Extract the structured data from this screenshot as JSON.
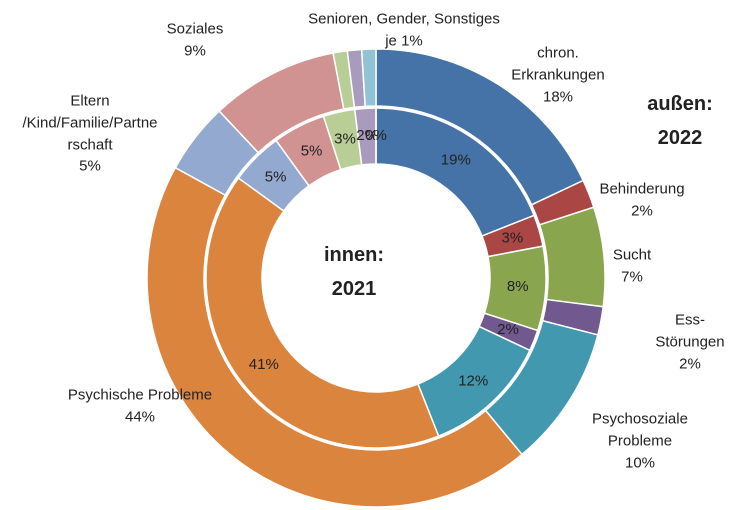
{
  "chart_data": {
    "type": "donut",
    "outer_annotation": [
      "außen:",
      "2022"
    ],
    "inner_annotation": [
      "innen:",
      "2021"
    ],
    "categories": [
      "chron.\nErkrankungen",
      "Behinderung",
      "Sucht",
      "Ess-Störungen",
      "Psychosoziale\nProbleme",
      "Psychische Probleme",
      "Eltern\n/Kind/Familie/Partne\nrschaft",
      "Soziales",
      null,
      null,
      null
    ],
    "group_label": "Senioren, Gender, Sonstiges",
    "group_value_label": "je 1%",
    "colors": [
      "#4572a7",
      "#aa4643",
      "#89a54e",
      "#71588f",
      "#4198af",
      "#db843d",
      "#93a9cf",
      "#d19392",
      "#b9cd96",
      "#a99bbd",
      "#92c3d5"
    ],
    "series": [
      {
        "name": "2022",
        "values": [
          18,
          2,
          7,
          2,
          10,
          44,
          5,
          9,
          1,
          1,
          1
        ],
        "value_labels": [
          "18%",
          "2%",
          "7%",
          "2%",
          "10%",
          "44%",
          "5%",
          "9%",
          null,
          null,
          null
        ]
      },
      {
        "name": "2021",
        "values": [
          19,
          3,
          8,
          2,
          12,
          41,
          5,
          5,
          3,
          2,
          0
        ],
        "value_labels": [
          "19%",
          "3%",
          "8%",
          "2%",
          "12%",
          "41%",
          "5%",
          "5%",
          "3%",
          "2%",
          "0%"
        ]
      }
    ]
  }
}
